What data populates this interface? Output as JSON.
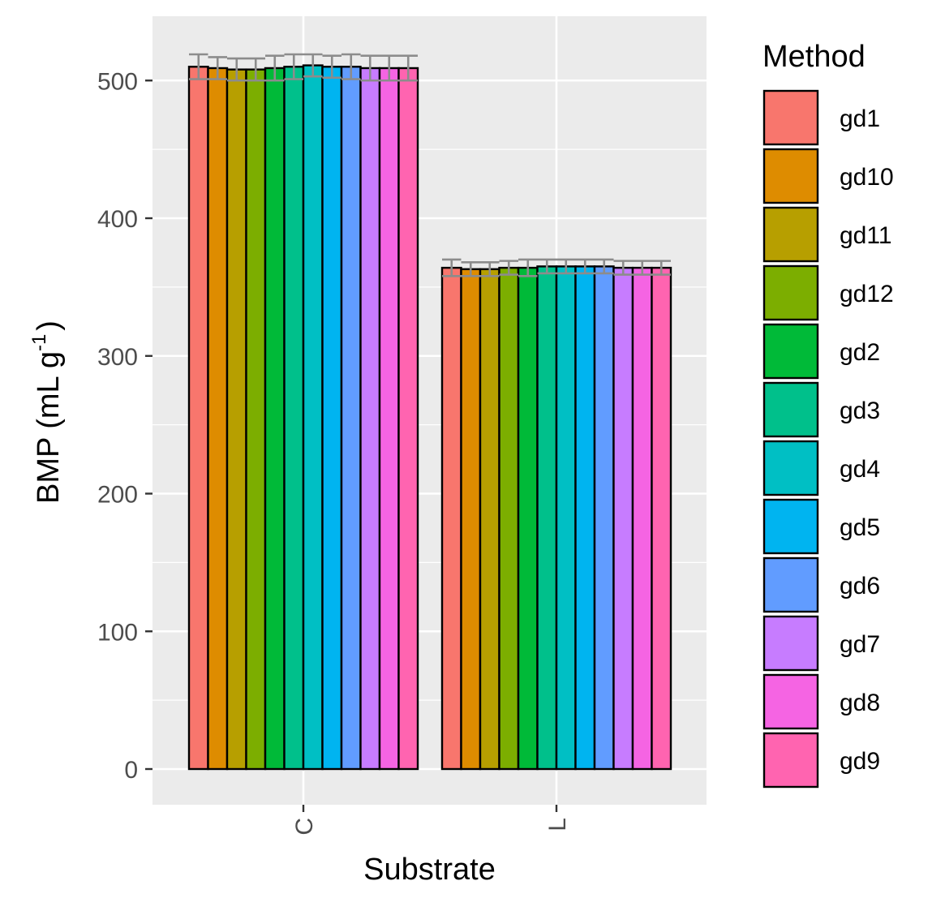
{
  "chart_data": {
    "type": "bar",
    "title": "",
    "xlabel": "Substrate",
    "ylabel": {
      "main": "BMP (mL g",
      "superscript": "-1",
      "close": ")"
    },
    "categories": [
      "C",
      "L"
    ],
    "ylim": [
      0,
      540
    ],
    "yticks": [
      0,
      100,
      200,
      300,
      400,
      500
    ],
    "grid": true,
    "legend": {
      "title": "Method",
      "placement": "right"
    },
    "series": [
      {
        "name": "gd1",
        "color": "#F8766D",
        "values": [
          510,
          364
        ],
        "error": [
          9,
          6
        ]
      },
      {
        "name": "gd10",
        "color": "#DE8C00",
        "values": [
          509,
          363
        ],
        "error": [
          8,
          5
        ]
      },
      {
        "name": "gd11",
        "color": "#B79F00",
        "values": [
          508,
          363
        ],
        "error": [
          8,
          5
        ]
      },
      {
        "name": "gd12",
        "color": "#7CAE00",
        "values": [
          508,
          364
        ],
        "error": [
          8,
          5
        ]
      },
      {
        "name": "gd2",
        "color": "#00BA38",
        "values": [
          509,
          364
        ],
        "error": [
          9,
          6
        ]
      },
      {
        "name": "gd3",
        "color": "#00C08B",
        "values": [
          510,
          365
        ],
        "error": [
          9,
          5
        ]
      },
      {
        "name": "gd4",
        "color": "#00BFC4",
        "values": [
          511,
          365
        ],
        "error": [
          8,
          5
        ]
      },
      {
        "name": "gd5",
        "color": "#00B4F0",
        "values": [
          510,
          365
        ],
        "error": [
          8,
          5
        ]
      },
      {
        "name": "gd6",
        "color": "#619CFF",
        "values": [
          510,
          365
        ],
        "error": [
          9,
          5
        ]
      },
      {
        "name": "gd7",
        "color": "#C77CFF",
        "values": [
          509,
          364
        ],
        "error": [
          9,
          5
        ]
      },
      {
        "name": "gd8",
        "color": "#F564E3",
        "values": [
          509,
          364
        ],
        "error": [
          9,
          5
        ]
      },
      {
        "name": "gd9",
        "color": "#FF64B0",
        "values": [
          509,
          364
        ],
        "error": [
          9,
          5
        ]
      }
    ],
    "colors": {
      "panel_background": "#EBEBEB",
      "grid_line": "#FFFFFF",
      "bar_outline": "#000000",
      "error_bar": "#8C8C8C",
      "tick_label": "#4D4D4D",
      "tick_mark": "#333333"
    }
  }
}
